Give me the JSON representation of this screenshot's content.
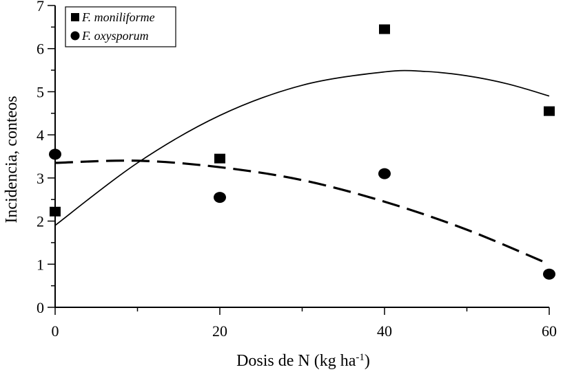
{
  "chart_data": {
    "type": "scatter",
    "title": "",
    "xlabel": "Dosis de N (kg ha",
    "xlabel_sup": "-1",
    "xlabel_suffix": ")",
    "ylabel": "Incidencia, conteos",
    "xlim": [
      0,
      60
    ],
    "ylim": [
      0,
      7
    ],
    "xticks": [
      0,
      20,
      40,
      60
    ],
    "xticks_minor": [
      10,
      30,
      50
    ],
    "yticks": [
      0,
      1,
      2,
      3,
      4,
      5,
      6,
      7
    ],
    "grid": false,
    "legend_position": "top-left",
    "series": [
      {
        "name": "F. moniliforme",
        "marker": "square",
        "color": "#000000",
        "line_style": "solid",
        "points": [
          {
            "x": 0,
            "y": 2.22
          },
          {
            "x": 20,
            "y": 3.45
          },
          {
            "x": 40,
            "y": 6.45
          },
          {
            "x": 60,
            "y": 4.55
          }
        ],
        "fit_curve": [
          {
            "x": 0,
            "y": 1.9
          },
          {
            "x": 10,
            "y": 3.35
          },
          {
            "x": 20,
            "y": 4.45
          },
          {
            "x": 30,
            "y": 5.15
          },
          {
            "x": 40,
            "y": 5.46
          },
          {
            "x": 45,
            "y": 5.47
          },
          {
            "x": 50,
            "y": 5.37
          },
          {
            "x": 55,
            "y": 5.18
          },
          {
            "x": 60,
            "y": 4.9
          }
        ]
      },
      {
        "name": "F. oxysporum",
        "marker": "circle",
        "color": "#000000",
        "line_style": "dashed",
        "points": [
          {
            "x": 0,
            "y": 3.55
          },
          {
            "x": 20,
            "y": 2.55
          },
          {
            "x": 40,
            "y": 3.1
          },
          {
            "x": 60,
            "y": 0.77
          }
        ],
        "fit_curve": [
          {
            "x": 0,
            "y": 3.35
          },
          {
            "x": 10,
            "y": 3.4
          },
          {
            "x": 20,
            "y": 3.25
          },
          {
            "x": 30,
            "y": 2.95
          },
          {
            "x": 40,
            "y": 2.45
          },
          {
            "x": 50,
            "y": 1.8
          },
          {
            "x": 60,
            "y": 1.0
          }
        ]
      }
    ]
  }
}
